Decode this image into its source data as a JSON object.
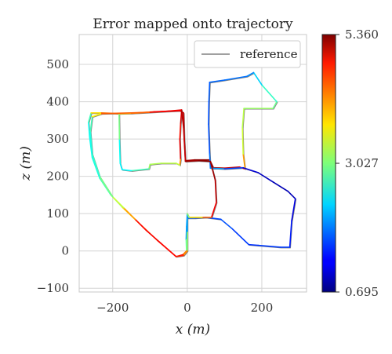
{
  "chart_data": {
    "type": "line",
    "title": "Error mapped onto trajectory",
    "xlabel": "x (m)",
    "ylabel": "z (m)",
    "xlim": [
      -290,
      320
    ],
    "ylim": [
      -110,
      580
    ],
    "xticks": [
      -200,
      0,
      200
    ],
    "yticks": [
      -100,
      0,
      100,
      200,
      300,
      400,
      500
    ],
    "xtick_labels": [
      "−200",
      "0",
      "200"
    ],
    "ytick_labels": [
      "−100",
      "0",
      "100",
      "200",
      "300",
      "400",
      "500"
    ],
    "grid": true,
    "legend": {
      "position": "top-right",
      "entries": [
        "reference"
      ]
    },
    "colorbar": {
      "colormap": "jet",
      "min": 0.695,
      "max": 5.36,
      "tick_values": [
        0.695,
        3.027,
        5.36
      ],
      "tick_labels": [
        "0.695",
        "3.027",
        "5.360"
      ]
    },
    "reference_color": "#808080",
    "trajectory": [
      [
        0,
        100,
        2.0
      ],
      [
        -2,
        65,
        2.0
      ],
      [
        -3,
        30,
        2.0
      ],
      [
        -2,
        0,
        3.8
      ],
      [
        -12,
        -10,
        4.6
      ],
      [
        -30,
        -15,
        5.0
      ],
      [
        -80,
        28,
        4.4
      ],
      [
        -130,
        75,
        4.3
      ],
      [
        -175,
        118,
        3.4
      ],
      [
        -205,
        150,
        3.0
      ],
      [
        -235,
        195,
        2.6
      ],
      [
        -255,
        250,
        2.5
      ],
      [
        -262,
        305,
        2.5
      ],
      [
        -265,
        345,
        2.5
      ],
      [
        -258,
        370,
        3.0
      ],
      [
        -230,
        370,
        4.5
      ],
      [
        -180,
        368,
        4.0
      ],
      [
        -130,
        370,
        4.2
      ],
      [
        -60,
        374,
        4.5
      ],
      [
        -15,
        378,
        5.3
      ],
      [
        -18,
        340,
        4.6
      ],
      [
        -20,
        300,
        4.8
      ],
      [
        -18,
        245,
        5.0
      ],
      [
        -20,
        230,
        3.3
      ],
      [
        -30,
        235,
        3.4
      ],
      [
        -70,
        235,
        3.2
      ],
      [
        -100,
        232,
        3.3
      ],
      [
        -103,
        220,
        3.0
      ],
      [
        -150,
        215,
        2.5
      ],
      [
        -175,
        218,
        2.4
      ],
      [
        -180,
        235,
        2.4
      ],
      [
        -182,
        300,
        2.6
      ],
      [
        -183,
        368,
        3.4
      ],
      [
        -150,
        369,
        4.1
      ],
      [
        -90,
        373,
        4.3
      ],
      [
        -20,
        376,
        5.3
      ],
      [
        -10,
        370,
        5.0
      ],
      [
        -8,
        300,
        5.0
      ],
      [
        -5,
        242,
        5.1
      ],
      [
        20,
        244,
        5.3
      ],
      [
        60,
        244,
        5.3
      ],
      [
        70,
        223,
        5.2
      ],
      [
        100,
        222,
        5.1
      ],
      [
        140,
        225,
        5.0
      ],
      [
        155,
        220,
        4.6
      ],
      [
        150,
        260,
        3.5
      ],
      [
        148,
        330,
        3.3
      ],
      [
        152,
        382,
        3.3
      ],
      [
        230,
        382,
        3.0
      ],
      [
        240,
        400,
        2.9
      ],
      [
        200,
        445,
        2.5
      ],
      [
        178,
        478,
        2.0
      ],
      [
        160,
        468,
        1.8
      ],
      [
        100,
        458,
        1.8
      ],
      [
        60,
        452,
        1.7
      ],
      [
        58,
        400,
        1.7
      ],
      [
        57,
        340,
        1.6
      ],
      [
        60,
        260,
        1.7
      ],
      [
        62,
        222,
        1.9
      ],
      [
        80,
        221,
        2.0
      ],
      [
        100,
        220,
        2.0
      ],
      [
        150,
        223,
        1.2
      ],
      [
        190,
        210,
        1.0
      ],
      [
        230,
        185,
        1.0
      ],
      [
        270,
        160,
        0.9
      ],
      [
        290,
        140,
        1.0
      ],
      [
        280,
        80,
        1.3
      ],
      [
        275,
        10,
        1.5
      ],
      [
        250,
        10,
        1.6
      ],
      [
        190,
        15,
        1.5
      ],
      [
        165,
        17,
        1.5
      ],
      [
        120,
        60,
        1.6
      ],
      [
        90,
        85,
        1.7
      ],
      [
        50,
        90,
        1.5
      ],
      [
        20,
        88,
        1.6
      ],
      [
        0,
        88,
        1.8
      ],
      [
        0,
        50,
        2.3
      ],
      [
        0,
        0,
        3.9
      ],
      [
        -10,
        -12,
        4.4
      ],
      [
        -30,
        -15,
        4.8
      ],
      [
        -70,
        20,
        4.7
      ],
      [
        -110,
        55,
        4.9
      ],
      [
        -140,
        85,
        4.6
      ],
      [
        -170,
        115,
        3.5
      ],
      [
        -200,
        145,
        3.2
      ],
      [
        -235,
        200,
        2.8
      ],
      [
        -255,
        260,
        2.6
      ],
      [
        -260,
        320,
        2.6
      ],
      [
        -255,
        360,
        2.9
      ],
      [
        -230,
        368,
        4.4
      ],
      [
        -150,
        370,
        4.3
      ],
      [
        -100,
        372,
        4.4
      ],
      [
        -15,
        376,
        5.2
      ],
      [
        -10,
        330,
        5.0
      ],
      [
        -5,
        240,
        5.1
      ],
      [
        30,
        242,
        5.3
      ],
      [
        62,
        240,
        5.3
      ],
      [
        75,
        190,
        5.1
      ],
      [
        78,
        130,
        5.0
      ],
      [
        65,
        90,
        4.6
      ],
      [
        40,
        90,
        4.0
      ],
      [
        5,
        90,
        3.5
      ],
      [
        0,
        100,
        2.8
      ]
    ]
  }
}
